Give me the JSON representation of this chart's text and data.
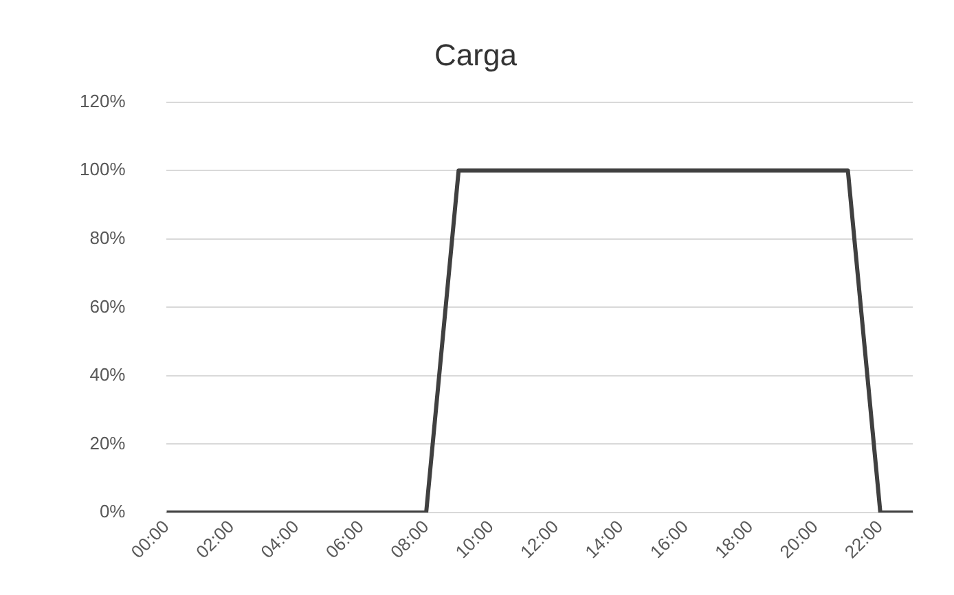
{
  "chart_data": {
    "type": "line",
    "title": "Carga",
    "categories": [
      "00:00",
      null,
      "02:00",
      null,
      "04:00",
      null,
      "06:00",
      null,
      "08:00",
      null,
      "10:00",
      null,
      "12:00",
      null,
      "14:00",
      null,
      "16:00",
      null,
      "18:00",
      null,
      "20:00",
      null,
      "22:00",
      null
    ],
    "series": [
      {
        "color": "#404040",
        "values": [
          0,
          0,
          0,
          0,
          0,
          0,
          0,
          0,
          0,
          100,
          100,
          100,
          100,
          100,
          100,
          100,
          100,
          100,
          100,
          100,
          100,
          100,
          0,
          0
        ]
      }
    ],
    "ylim": [
      0,
      120
    ],
    "yticks": [
      {
        "value": 0,
        "label": "0%"
      },
      {
        "value": 20,
        "label": "20%"
      },
      {
        "value": 40,
        "label": "40%"
      },
      {
        "value": 60,
        "label": "60%"
      },
      {
        "value": 80,
        "label": "80%"
      },
      {
        "value": 100,
        "label": "100%"
      },
      {
        "value": 120,
        "label": "120%"
      }
    ],
    "grid": "y",
    "legend": false,
    "marker": "none",
    "line_style": "solid"
  }
}
